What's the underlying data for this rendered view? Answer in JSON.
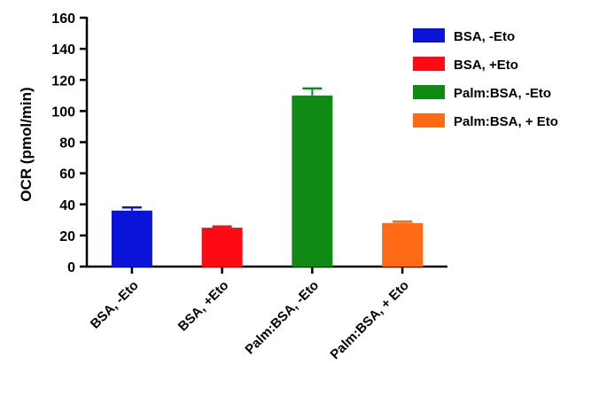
{
  "chart_data": {
    "type": "bar",
    "title": "",
    "xlabel": "",
    "ylabel": "OCR (pmol/min)",
    "ylim": [
      0,
      160
    ],
    "yticks": [
      0,
      20,
      40,
      60,
      80,
      100,
      120,
      140,
      160
    ],
    "grid": false,
    "legend_position": "top-right",
    "categories": [
      "BSA, -Eto",
      "BSA, +Eto",
      "Palm:BSA, -Eto",
      "Palm:BSA, + Eto"
    ],
    "values": [
      36,
      25,
      110,
      28
    ],
    "error": [
      2,
      0.8,
      4.5,
      1
    ],
    "colors": [
      "#0a14d8",
      "#ff0a14",
      "#0f8a14",
      "#ff6a14"
    ],
    "legend": [
      "BSA, -Eto",
      "BSA, +Eto",
      "Palm:BSA, -Eto",
      "Palm:BSA, + Eto"
    ]
  }
}
